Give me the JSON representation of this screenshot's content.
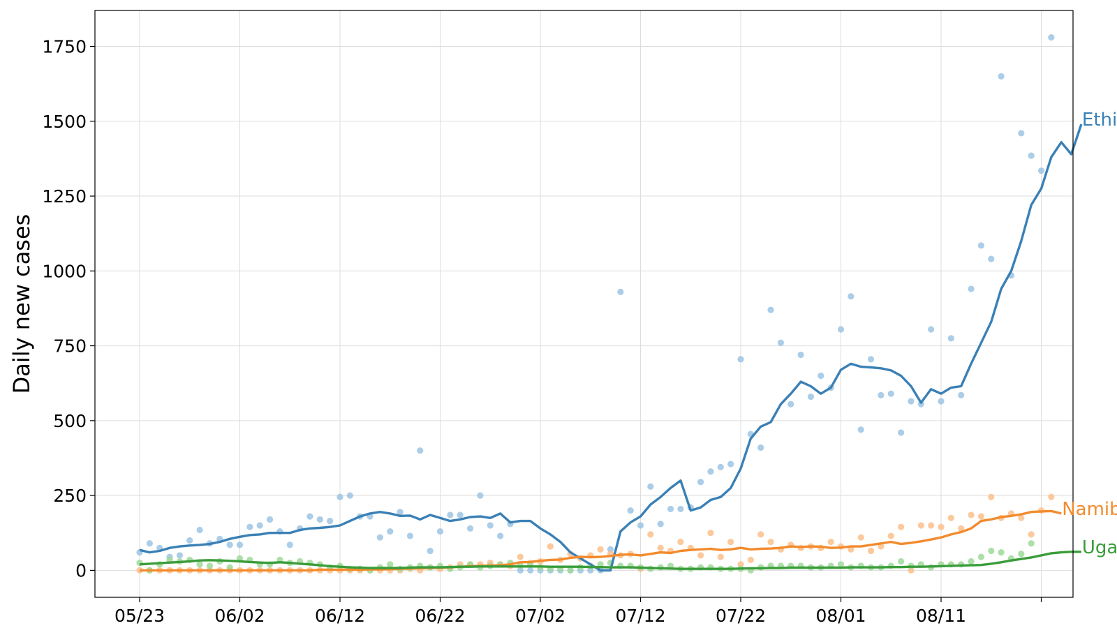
{
  "chart_data": {
    "type": "line",
    "title": "",
    "xlabel": "",
    "ylabel": "Daily new cases",
    "x_start": "05/23",
    "x_tick_labels": [
      "05/23",
      "06/02",
      "06/12",
      "06/22",
      "07/02",
      "07/12",
      "07/22",
      "08/01",
      "08/11",
      ""
    ],
    "y_tick_labels": [
      "0",
      "250",
      "500",
      "750",
      "1000",
      "1250",
      "1500",
      "1750"
    ],
    "y_ticks": [
      0,
      250,
      500,
      750,
      1000,
      1250,
      1500,
      1750
    ],
    "ylim": [
      -90,
      1870
    ],
    "grid": true,
    "legend": "inline labels at line ends",
    "series": [
      {
        "name": "Ethiopia",
        "color": "#3a80b5",
        "scatter_color": "#9cc4e4",
        "daily": [
          60,
          90,
          75,
          45,
          50,
          100,
          135,
          90,
          105,
          85,
          85,
          145,
          150,
          170,
          130,
          85,
          140,
          180,
          170,
          165,
          245,
          250,
          180,
          180,
          110,
          130,
          195,
          115,
          400,
          65,
          130,
          185,
          185,
          140,
          250,
          150,
          115,
          155,
          0,
          0,
          0,
          0,
          0,
          0,
          0,
          0,
          0,
          70,
          930,
          200,
          150,
          280,
          155,
          205,
          205,
          210,
          295,
          330,
          345,
          355,
          705,
          455,
          410,
          870,
          760,
          555,
          720,
          580,
          650,
          610,
          805,
          915,
          470,
          705,
          585,
          590,
          460,
          565,
          555,
          805,
          565,
          775,
          585,
          940,
          1085,
          1040,
          1650,
          985,
          1460,
          1385,
          1335,
          1780
        ],
        "average": [
          68,
          60,
          65,
          75,
          80,
          83,
          85,
          88,
          95,
          105,
          112,
          118,
          120,
          125,
          125,
          125,
          135,
          140,
          142,
          145,
          150,
          165,
          180,
          190,
          195,
          190,
          182,
          183,
          170,
          185,
          175,
          165,
          170,
          178,
          180,
          175,
          190,
          160,
          165,
          165,
          140,
          120,
          95,
          60,
          40,
          20,
          0,
          0,
          130,
          160,
          180,
          220,
          245,
          275,
          300,
          200,
          210,
          235,
          245,
          275,
          340,
          440,
          480,
          495,
          555,
          590,
          630,
          615,
          590,
          610,
          670,
          690,
          680,
          678,
          675,
          668,
          650,
          615,
          560,
          605,
          590,
          610,
          615,
          690,
          760,
          830,
          940,
          1000,
          1100,
          1220,
          1275,
          1380,
          1430,
          1390,
          1490
        ]
      },
      {
        "name": "Namibia",
        "color": "#f28b2e",
        "scatter_color": "#fcc08c",
        "daily": [
          0,
          0,
          0,
          0,
          0,
          0,
          0,
          0,
          0,
          0,
          0,
          0,
          0,
          0,
          0,
          0,
          0,
          0,
          0,
          0,
          0,
          0,
          0,
          0,
          0,
          0,
          0,
          5,
          0,
          10,
          5,
          10,
          20,
          20,
          20,
          25,
          20,
          15,
          45,
          25,
          30,
          80,
          35,
          55,
          40,
          50,
          70,
          55,
          50,
          55,
          5,
          120,
          75,
          65,
          95,
          75,
          50,
          125,
          45,
          95,
          20,
          35,
          120,
          95,
          70,
          85,
          75,
          80,
          75,
          95,
          80,
          70,
          110,
          65,
          80,
          115,
          145,
          0,
          150,
          150,
          145,
          175,
          140,
          185,
          180,
          245,
          175,
          190,
          175,
          120,
          200,
          245
        ],
        "average": [
          0,
          0,
          0,
          0,
          0,
          0,
          0,
          0,
          0,
          0,
          0,
          0,
          0,
          0,
          0,
          0,
          0,
          0,
          2,
          2,
          2,
          2,
          2,
          3,
          3,
          4,
          5,
          6,
          7,
          8,
          9,
          10,
          12,
          14,
          15,
          16,
          17,
          20,
          27,
          28,
          32,
          35,
          36,
          42,
          45,
          44,
          45,
          48,
          52,
          53,
          50,
          55,
          60,
          58,
          65,
          68,
          70,
          72,
          68,
          70,
          75,
          70,
          72,
          73,
          75,
          80,
          78,
          80,
          79,
          75,
          76,
          80,
          80,
          85,
          90,
          95,
          88,
          92,
          97,
          103,
          110,
          120,
          128,
          140,
          165,
          170,
          178,
          182,
          187,
          195,
          197,
          198,
          190
        ],
        "avg_start_index": 0
      },
      {
        "name": "Uganda",
        "color": "#3a9d3a",
        "scatter_color": "#9fd99a",
        "daily": [
          25,
          0,
          20,
          35,
          30,
          35,
          20,
          15,
          30,
          10,
          40,
          35,
          20,
          20,
          35,
          25,
          30,
          25,
          20,
          10,
          15,
          5,
          5,
          0,
          10,
          20,
          5,
          10,
          15,
          10,
          15,
          5,
          10,
          20,
          10,
          15,
          20,
          25,
          15,
          20,
          10,
          5,
          5,
          0,
          10,
          15,
          20,
          25,
          15,
          15,
          10,
          5,
          10,
          15,
          5,
          5,
          10,
          10,
          5,
          5,
          5,
          0,
          10,
          15,
          15,
          15,
          15,
          10,
          10,
          15,
          20,
          10,
          15,
          10,
          10,
          15,
          30,
          15,
          20,
          10,
          20,
          20,
          20,
          30,
          45,
          65,
          60,
          40,
          55,
          90
        ],
        "average": [
          20,
          22,
          24,
          26,
          28,
          30,
          33,
          34,
          33,
          32,
          30,
          28,
          26,
          25,
          27,
          25,
          22,
          20,
          17,
          14,
          12,
          10,
          9,
          8,
          8,
          8,
          8,
          9,
          10,
          10,
          10,
          11,
          12,
          12,
          13,
          13,
          13,
          13,
          13,
          13,
          13,
          12,
          12,
          12,
          12,
          11,
          11,
          10,
          10,
          10,
          9,
          8,
          7,
          6,
          5,
          5,
          5,
          5,
          5,
          5,
          6,
          7,
          7,
          8,
          8,
          9,
          9,
          9,
          9,
          9,
          9,
          10,
          10,
          10,
          10,
          11,
          11,
          12,
          12,
          13,
          14,
          15,
          16,
          17,
          18,
          22,
          27,
          33,
          38,
          43,
          50,
          57,
          60,
          62,
          62
        ]
      }
    ]
  }
}
